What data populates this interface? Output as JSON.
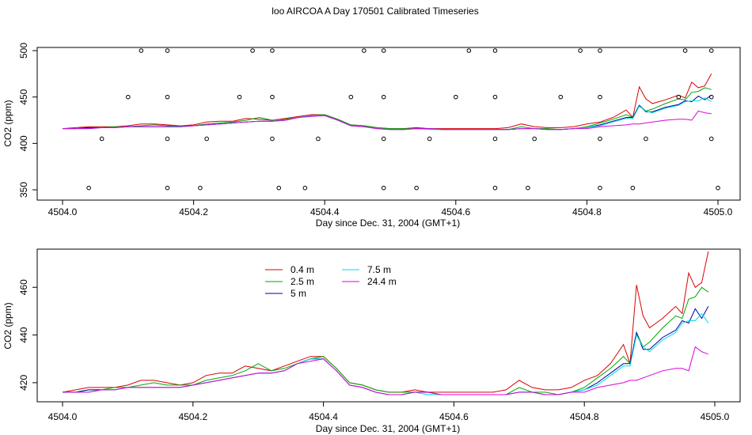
{
  "title": "loo AIRCOA A  Day 170501  Calibrated Timeseries",
  "chart_data": [
    {
      "type": "line",
      "xlabel": "Day since Dec. 31, 2004 (GMT+1)",
      "ylabel": "CO2 (ppm)",
      "xlim": [
        4504.0,
        4505.0
      ],
      "ylim": [
        350,
        500
      ],
      "xticks": [
        "4504.0",
        "4504.2",
        "4504.4",
        "4504.6",
        "4504.8",
        "4505.0"
      ],
      "yticks": [
        "350",
        "400",
        "450",
        "500"
      ],
      "scatter_points": {
        "500": [
          4504.12,
          4504.16,
          4504.29,
          4504.32,
          4504.46,
          4504.49,
          4504.62,
          4504.66,
          4504.79,
          4504.82,
          4504.95,
          4504.99
        ],
        "450": [
          4504.1,
          4504.16,
          4504.27,
          4504.32,
          4504.44,
          4504.49,
          4504.6,
          4504.66,
          4504.76,
          4504.82,
          4504.94,
          4504.99
        ],
        "405": [
          4504.06,
          4504.16,
          4504.22,
          4504.32,
          4504.39,
          4504.49,
          4504.56,
          4504.66,
          4504.72,
          4504.82,
          4504.89,
          4504.99
        ],
        "352": [
          4504.04,
          4504.16,
          4504.21,
          4504.33,
          4504.37,
          4504.49,
          4504.54,
          4504.66,
          4504.71,
          4504.82,
          4504.87,
          4505.0
        ]
      }
    },
    {
      "type": "line",
      "xlabel": "Day since Dec. 31, 2004 (GMT+1)",
      "ylabel": "CO2 (ppm)",
      "xlim": [
        4504.0,
        4505.0
      ],
      "ylim": [
        412,
        476
      ],
      "xticks": [
        "4504.0",
        "4504.2",
        "4504.4",
        "4504.6",
        "4504.8",
        "4505.0"
      ],
      "yticks": [
        "420",
        "440",
        "460"
      ],
      "legend_position": "top-left",
      "series": [
        {
          "name": "0.4 m",
          "color": "#dd0000"
        },
        {
          "name": "2.5 m",
          "color": "#00aa00"
        },
        {
          "name": "5 m",
          "color": "#0000aa"
        },
        {
          "name": "7.5 m",
          "color": "#00dddd"
        },
        {
          "name": "24.4 m",
          "color": "#dd00dd"
        }
      ],
      "x": [
        4504.0,
        4504.02,
        4504.04,
        4504.06,
        4504.08,
        4504.1,
        4504.12,
        4504.14,
        4504.16,
        4504.18,
        4504.2,
        4504.22,
        4504.24,
        4504.26,
        4504.28,
        4504.3,
        4504.32,
        4504.34,
        4504.36,
        4504.38,
        4504.4,
        4504.42,
        4504.44,
        4504.46,
        4504.48,
        4504.5,
        4504.52,
        4504.54,
        4504.56,
        4504.58,
        4504.6,
        4504.62,
        4504.64,
        4504.66,
        4504.68,
        4504.7,
        4504.72,
        4504.74,
        4504.76,
        4504.78,
        4504.8,
        4504.82,
        4504.84,
        4504.86,
        4504.87,
        4504.88,
        4504.89,
        4504.9,
        4504.92,
        4504.94,
        4504.95,
        4504.96,
        4504.97,
        4504.98,
        4504.99
      ],
      "values": {
        "0.4 m": [
          416,
          417,
          418,
          418,
          418,
          419,
          421,
          421,
          420,
          419,
          420,
          423,
          424,
          424,
          427,
          426,
          425,
          427,
          429,
          431,
          431,
          426,
          420,
          419,
          417,
          416,
          416,
          417,
          416,
          416,
          416,
          416,
          416,
          416,
          417,
          421,
          418,
          417,
          417,
          418,
          421,
          423,
          428,
          436,
          428,
          461,
          448,
          443,
          447,
          452,
          449,
          466,
          460,
          462,
          475
        ],
        "2.5 m": [
          416,
          416,
          417,
          417,
          418,
          418,
          419,
          420,
          419,
          419,
          419,
          421,
          422,
          423,
          425,
          428,
          425,
          426,
          428,
          430,
          431,
          426,
          420,
          419,
          417,
          416,
          416,
          416,
          416,
          415,
          415,
          415,
          415,
          415,
          415,
          418,
          416,
          416,
          415,
          416,
          418,
          422,
          426,
          431,
          428,
          441,
          435,
          437,
          443,
          448,
          447,
          455,
          456,
          460,
          458
        ],
        "5 m": [
          416,
          416,
          417,
          417,
          417,
          418,
          418,
          418,
          418,
          418,
          419,
          420,
          421,
          422,
          423,
          424,
          424,
          425,
          428,
          430,
          430,
          425,
          419,
          418,
          416,
          415,
          415,
          416,
          416,
          415,
          415,
          415,
          415,
          415,
          415,
          416,
          416,
          415,
          415,
          416,
          417,
          420,
          424,
          428,
          428,
          441,
          434,
          434,
          439,
          442,
          446,
          445,
          451,
          447,
          452
        ],
        "7.5 m": [
          416,
          416,
          416,
          417,
          417,
          418,
          418,
          418,
          418,
          418,
          419,
          420,
          421,
          422,
          423,
          424,
          424,
          425,
          428,
          430,
          430,
          425,
          419,
          418,
          416,
          415,
          415,
          416,
          415,
          415,
          415,
          415,
          415,
          415,
          415,
          416,
          416,
          415,
          415,
          416,
          417,
          419,
          423,
          427,
          427,
          440,
          435,
          433,
          438,
          441,
          445,
          446,
          446,
          449,
          445
        ],
        "24.4 m": [
          416,
          416,
          416,
          417,
          417,
          418,
          418,
          418,
          418,
          418,
          419,
          420,
          421,
          422,
          423,
          424,
          424,
          425,
          428,
          429,
          430,
          425,
          419,
          418,
          416,
          415,
          415,
          416,
          416,
          415,
          415,
          415,
          415,
          415,
          415,
          416,
          416,
          415,
          415,
          416,
          416,
          418,
          419,
          420,
          421,
          421,
          422,
          423,
          425,
          426,
          426,
          425,
          435,
          433,
          432
        ]
      }
    }
  ]
}
